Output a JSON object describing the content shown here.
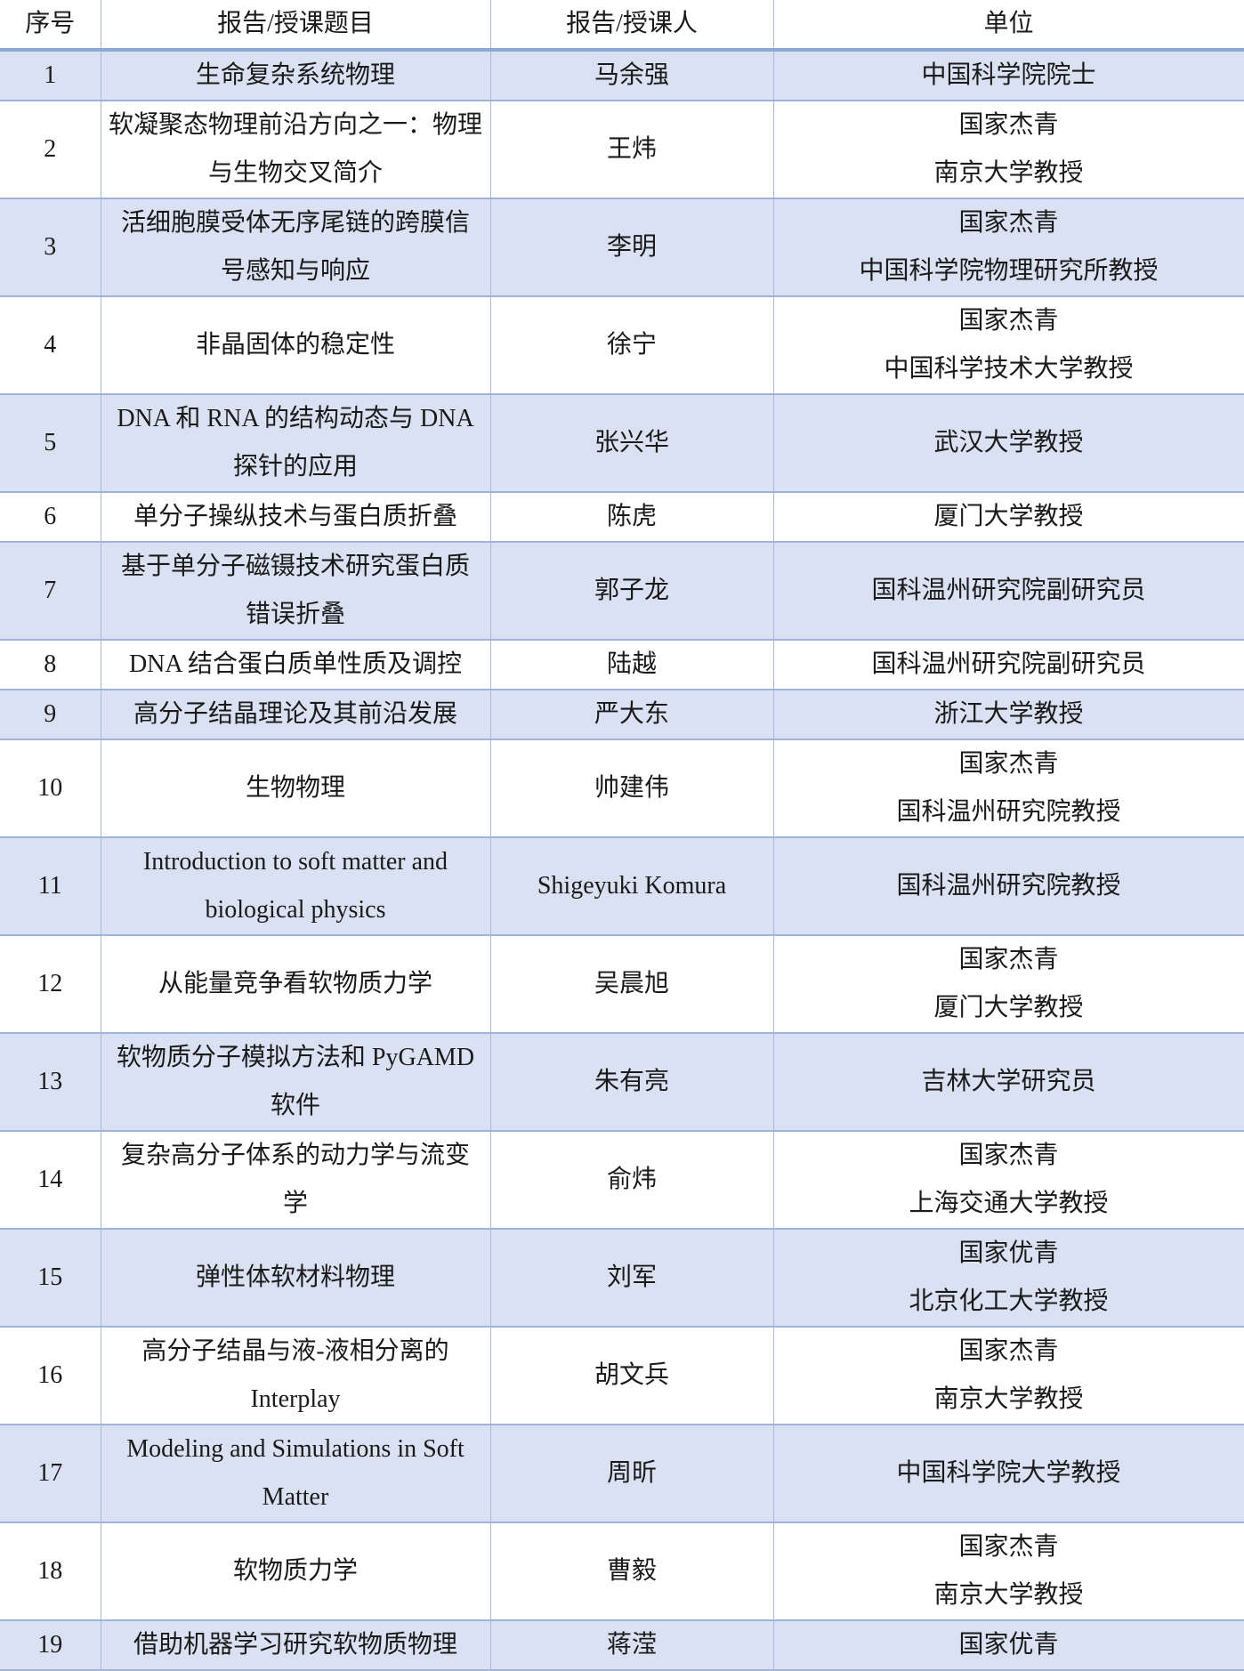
{
  "colors": {
    "alt_row_fill": "#d9e1f3",
    "grid_line_horizontal": "#a0b4db",
    "grid_line_vertical": "#a6bae2",
    "header_rule": "#8ca8d8",
    "text": "#1a1a1a"
  },
  "table": {
    "columns": [
      {
        "key": "num",
        "label": "序号"
      },
      {
        "key": "title",
        "label": "报告/授课题目"
      },
      {
        "key": "speaker",
        "label": "报告/授课人"
      },
      {
        "key": "unit",
        "label": "单位"
      }
    ],
    "rows": [
      {
        "num": "1",
        "title": "生命复杂系统物理",
        "speaker": "马余强",
        "unit": "中国科学院院士"
      },
      {
        "num": "2",
        "title": "软凝聚态物理前沿方向之一：物理\n与生物交叉简介",
        "speaker": "王炜",
        "unit": "国家杰青\n南京大学教授"
      },
      {
        "num": "3",
        "title": "活细胞膜受体无序尾链的跨膜信\n号感知与响应",
        "speaker": "李明",
        "unit": "国家杰青\n中国科学院物理研究所教授"
      },
      {
        "num": "4",
        "title": "非晶固体的稳定性",
        "speaker": "徐宁",
        "unit": "国家杰青\n中国科学技术大学教授"
      },
      {
        "num": "5",
        "title": "DNA 和 RNA 的结构动态与 DNA\n探针的应用",
        "speaker": "张兴华",
        "unit": "武汉大学教授"
      },
      {
        "num": "6",
        "title": "单分子操纵技术与蛋白质折叠",
        "speaker": "陈虎",
        "unit": "厦门大学教授"
      },
      {
        "num": "7",
        "title": "基于单分子磁镊技术研究蛋白质\n错误折叠",
        "speaker": "郭子龙",
        "unit": "国科温州研究院副研究员"
      },
      {
        "num": "8",
        "title": "DNA 结合蛋白质单性质及调控",
        "speaker": "陆越",
        "unit": "国科温州研究院副研究员"
      },
      {
        "num": "9",
        "title": "高分子结晶理论及其前沿发展",
        "speaker": "严大东",
        "unit": "浙江大学教授"
      },
      {
        "num": "10",
        "title": "生物物理",
        "speaker": "帅建伟",
        "unit": "国家杰青\n国科温州研究院教授"
      },
      {
        "num": "11",
        "title": "Introduction to soft matter and\nbiological physics",
        "speaker": "Shigeyuki Komura",
        "unit": "国科温州研究院教授"
      },
      {
        "num": "12",
        "title": "从能量竞争看软物质力学",
        "speaker": "吴晨旭",
        "unit": "国家杰青\n厦门大学教授"
      },
      {
        "num": "13",
        "title": "软物质分子模拟方法和 PyGAMD\n软件",
        "speaker": "朱有亮",
        "unit": "吉林大学研究员"
      },
      {
        "num": "14",
        "title": "复杂高分子体系的动力学与流变\n学",
        "speaker": "俞炜",
        "unit": "国家杰青\n上海交通大学教授"
      },
      {
        "num": "15",
        "title": "弹性体软材料物理",
        "speaker": "刘军",
        "unit": "国家优青\n北京化工大学教授"
      },
      {
        "num": "16",
        "title": "高分子结晶与液-液相分离的\nInterplay",
        "speaker": "胡文兵",
        "unit": "国家杰青\n南京大学教授"
      },
      {
        "num": "17",
        "title": "Modeling and Simulations in Soft\nMatter",
        "speaker": "周昕",
        "unit": "中国科学院大学教授"
      },
      {
        "num": "18",
        "title": "软物质力学",
        "speaker": "曹毅",
        "unit": "国家杰青\n南京大学教授"
      },
      {
        "num": "19",
        "title": "借助机器学习研究软物质物理",
        "speaker": "蒋滢",
        "unit": "国家优青"
      }
    ]
  }
}
